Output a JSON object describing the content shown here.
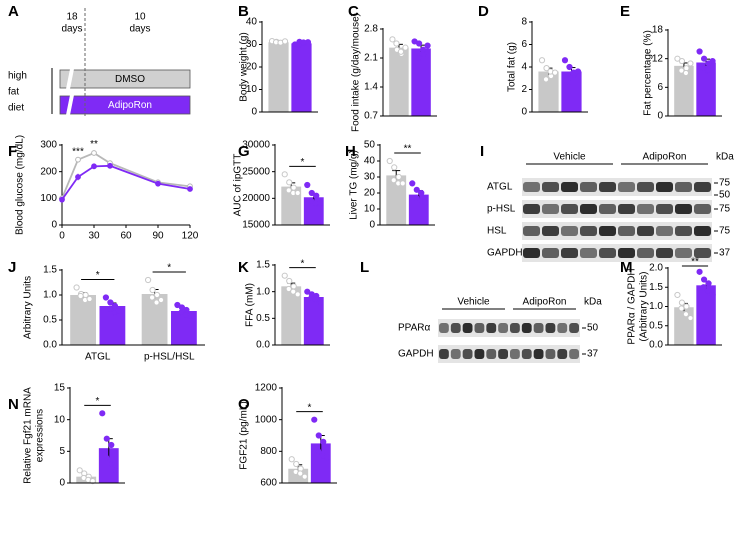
{
  "schematic": {
    "label": "A",
    "periods": [
      [
        "18",
        "days"
      ],
      [
        "10",
        "days"
      ]
    ],
    "diet": [
      "high",
      "fat",
      "diet"
    ],
    "groups": [
      "DMSO",
      "AdipoRon"
    ],
    "colors": [
      "#d0d0d0",
      "#7f2af5"
    ]
  },
  "blots": [
    {
      "label": "I",
      "groups": [
        "Vehicle",
        "AdipoRon"
      ],
      "unit": "kDa",
      "rows": [
        "ATGL",
        "p-HSL",
        "HSL",
        "GAPDH"
      ],
      "markers": [
        75,
        50,
        75,
        75,
        37
      ]
    },
    {
      "label": "L",
      "groups": [
        "Vehicle",
        "AdipoRon"
      ],
      "unit": "kDa",
      "rows": [
        "PPARα",
        "GAPDH"
      ],
      "markers": [
        50,
        37
      ]
    }
  ],
  "chart_data": [
    {
      "type": "bar",
      "label": "B",
      "ylabel": [
        "Body weight (g)"
      ],
      "categories": [
        null
      ],
      "ylim": [
        0,
        40
      ],
      "yticks": [
        0,
        10,
        20,
        30,
        40
      ],
      "series": [
        {
          "color": "#c8c8c8",
          "marker_fill": "#ffffff",
          "values": [
            31
          ],
          "errors": [
            0.3
          ],
          "points": [
            [
              31.5,
              31.2,
              30.6,
              31.0,
              30.8,
              31.4
            ]
          ]
        },
        {
          "color": "#7f2af5",
          "marker_fill": "#7f2af5",
          "values": [
            30.5
          ],
          "errors": [
            0.4
          ],
          "points": [
            [
              30.0,
              31.2,
              30.6,
              29.8,
              30.9,
              31.0
            ]
          ]
        }
      ]
    },
    {
      "type": "bar",
      "label": "C",
      "ylabel": [
        "Food intake (g/day/mouse)"
      ],
      "categories": [
        null
      ],
      "ylim": [
        0.7,
        2.8
      ],
      "yticks": [
        0.7,
        1.4,
        2.1,
        2.8
      ],
      "series": [
        {
          "color": "#c8c8c8",
          "marker_fill": "#ffffff",
          "values": [
            2.35
          ],
          "errors": [
            0.08
          ],
          "points": [
            [
              2.55,
              2.3,
              2.2,
              2.45,
              2.25,
              2.35
            ]
          ]
        },
        {
          "color": "#7f2af5",
          "marker_fill": "#7f2af5",
          "values": [
            2.33
          ],
          "errors": [
            0.08
          ],
          "points": [
            [
              2.5,
              2.45,
              2.2,
              2.1,
              2.3,
              2.4
            ]
          ]
        }
      ]
    },
    {
      "type": "bar",
      "label": "D",
      "ylabel": [
        "Total fat (g)"
      ],
      "categories": [
        null
      ],
      "ylim": [
        0,
        8
      ],
      "yticks": [
        0,
        2,
        4,
        6,
        8
      ],
      "series": [
        {
          "color": "#c8c8c8",
          "marker_fill": "#ffffff",
          "values": [
            3.6
          ],
          "errors": [
            0.3
          ],
          "points": [
            [
              4.6,
              3.9,
              3.2,
              2.9,
              3.6,
              3.5
            ]
          ]
        },
        {
          "color": "#7f2af5",
          "marker_fill": "#7f2af5",
          "values": [
            3.6
          ],
          "errors": [
            0.35
          ],
          "points": [
            [
              4.6,
              4.0,
              3.3,
              2.7,
              3.5,
              3.6
            ]
          ]
        }
      ]
    },
    {
      "type": "bar",
      "label": "E",
      "ylabel": [
        "Fat percentage (%)"
      ],
      "categories": [
        null
      ],
      "ylim": [
        0,
        18
      ],
      "yticks": [
        0,
        6,
        12,
        18
      ],
      "series": [
        {
          "color": "#c8c8c8",
          "marker_fill": "#ffffff",
          "values": [
            10.5
          ],
          "errors": [
            0.6
          ],
          "points": [
            [
              12,
              11.5,
              10,
              9.5,
              9,
              11
            ]
          ]
        },
        {
          "color": "#7f2af5",
          "marker_fill": "#7f2af5",
          "values": [
            11.2
          ],
          "errors": [
            0.7
          ],
          "points": [
            [
              13.5,
              12,
              11,
              10,
              9.5,
              11.5
            ]
          ]
        }
      ]
    },
    {
      "type": "line",
      "label": "F",
      "ylabel": [
        "Blood glucose (mg/dL)"
      ],
      "x": [
        0,
        15,
        30,
        45,
        90,
        120
      ],
      "xlim": [
        0,
        120
      ],
      "xticks": [
        0,
        30,
        60,
        90,
        120
      ],
      "ylim": [
        0,
        300
      ],
      "yticks": [
        0,
        100,
        200,
        300
      ],
      "series": [
        {
          "color": "#b8b8b8",
          "marker_fill": "#ffffff",
          "values": [
            100,
            245,
            270,
            232,
            160,
            145
          ],
          "errors": [
            5,
            6,
            10,
            10,
            6,
            8
          ]
        },
        {
          "color": "#7f2af5",
          "marker_fill": "#7f2af5",
          "values": [
            95,
            180,
            220,
            222,
            155,
            135
          ],
          "errors": [
            5,
            12,
            8,
            10,
            6,
            8
          ]
        }
      ],
      "annotations": [
        {
          "x": 15,
          "text": "***"
        },
        {
          "x": 30,
          "text": "**"
        }
      ]
    },
    {
      "type": "bar",
      "label": "G",
      "ylabel": [
        "AUC of ipGTT"
      ],
      "categories": [
        null
      ],
      "ylim": [
        15000,
        30000
      ],
      "yticks": [
        15000,
        20000,
        25000,
        30000
      ],
      "significance": [
        "*"
      ],
      "series": [
        {
          "color": "#c8c8c8",
          "marker_fill": "#ffffff",
          "values": [
            22200
          ],
          "errors": [
            700
          ],
          "points": [
            [
              24500,
              23000,
              22000,
              21500,
              21000,
              21000
            ]
          ]
        },
        {
          "color": "#7f2af5",
          "marker_fill": "#7f2af5",
          "values": [
            20200
          ],
          "errors": [
            600
          ],
          "points": [
            [
              22500,
              21000,
              20500,
              19500,
              19000,
              19000
            ]
          ]
        }
      ]
    },
    {
      "type": "bar",
      "label": "H",
      "ylabel": [
        "Liver TG (mg/g)"
      ],
      "categories": [
        null
      ],
      "ylim": [
        0,
        50
      ],
      "yticks": [
        0,
        10,
        20,
        30,
        40,
        50
      ],
      "significance": [
        "**"
      ],
      "series": [
        {
          "color": "#c8c8c8",
          "marker_fill": "#ffffff",
          "values": [
            31
          ],
          "errors": [
            3
          ],
          "points": [
            [
              40,
              36,
              30,
              28,
              26,
              26
            ]
          ]
        },
        {
          "color": "#7f2af5",
          "marker_fill": "#7f2af5",
          "values": [
            19
          ],
          "errors": [
            2.5
          ],
          "points": [
            [
              26,
              22,
              20,
              17,
              15,
              14
            ]
          ]
        }
      ]
    },
    {
      "type": "bar",
      "label": "J",
      "ylabel": [
        "Arbitrary Units"
      ],
      "categories": [
        "ATGL",
        "p-HSL/HSL"
      ],
      "ylim": [
        0,
        1.5
      ],
      "yticks": [
        {
          "value": 0,
          "label": "0.0"
        },
        0.5,
        {
          "value": 1,
          "label": "1.0"
        },
        1.5
      ],
      "significance": [
        "*",
        "*"
      ],
      "series": [
        {
          "color": "#c8c8c8",
          "marker_fill": "#ffffff",
          "values": [
            1.0,
            1.02
          ],
          "errors": [
            0.05,
            0.09
          ],
          "points": [
            [
              1.15,
              1.02,
              1.0,
              0.98,
              0.9,
              0.92
            ],
            [
              1.3,
              1.1,
              1.0,
              0.95,
              0.85,
              0.9
            ]
          ]
        },
        {
          "color": "#7f2af5",
          "marker_fill": "#7f2af5",
          "values": [
            0.78,
            0.68
          ],
          "errors": [
            0.06,
            0.05
          ],
          "points": [
            [
              0.95,
              0.85,
              0.78,
              0.72,
              0.65,
              0.68
            ],
            [
              0.8,
              0.75,
              0.7,
              0.65,
              0.6,
              0.58
            ]
          ]
        }
      ]
    },
    {
      "type": "bar",
      "label": "K",
      "ylabel": [
        "FFA (mM)"
      ],
      "categories": [
        null
      ],
      "ylim": [
        0,
        1.5
      ],
      "yticks": [
        {
          "value": 0,
          "label": "0.0"
        },
        0.5,
        {
          "value": 1,
          "label": "1.0"
        },
        1.5
      ],
      "significance": [
        "*"
      ],
      "series": [
        {
          "color": "#c8c8c8",
          "marker_fill": "#ffffff",
          "values": [
            1.1
          ],
          "errors": [
            0.06
          ],
          "points": [
            [
              1.3,
              1.2,
              1.1,
              1.05,
              1.0,
              0.95
            ]
          ]
        },
        {
          "color": "#7f2af5",
          "marker_fill": "#7f2af5",
          "values": [
            0.9
          ],
          "errors": [
            0.05
          ],
          "points": [
            [
              1.0,
              0.95,
              0.92,
              0.88,
              0.85,
              0.8
            ]
          ]
        }
      ]
    },
    {
      "type": "bar",
      "label": "M",
      "ylabel": [
        "PPARα / GAPDH",
        "(Arbitrary Units)"
      ],
      "categories": [
        null
      ],
      "ylim": [
        0,
        2
      ],
      "yticks": [
        {
          "value": 0,
          "label": "0.0"
        },
        0.5,
        {
          "value": 1,
          "label": "1.0"
        },
        1.5,
        {
          "value": 2,
          "label": "2.0"
        }
      ],
      "significance": [
        "**"
      ],
      "series": [
        {
          "color": "#c8c8c8",
          "marker_fill": "#ffffff",
          "values": [
            0.98
          ],
          "errors": [
            0.1
          ],
          "points": [
            [
              1.3,
              1.1,
              1.0,
              0.95,
              0.8,
              0.7
            ]
          ]
        },
        {
          "color": "#7f2af5",
          "marker_fill": "#7f2af5",
          "values": [
            1.55
          ],
          "errors": [
            0.1
          ],
          "points": [
            [
              1.9,
              1.7,
              1.6,
              1.5,
              1.4,
              1.3
            ]
          ]
        }
      ]
    },
    {
      "type": "bar",
      "label": "N",
      "ylabel": [
        "Relative Fgf21 mRNA",
        "expressions"
      ],
      "categories": [
        null
      ],
      "ylim": [
        0,
        15
      ],
      "yticks": [
        0,
        5,
        10,
        15
      ],
      "significance": [
        "*"
      ],
      "series": [
        {
          "color": "#c8c8c8",
          "marker_fill": "#ffffff",
          "values": [
            1.0
          ],
          "errors": [
            0.3
          ],
          "points": [
            [
              2,
              1.5,
              1,
              0.8,
              0.5,
              0.3
            ]
          ]
        },
        {
          "color": "#7f2af5",
          "marker_fill": "#7f2af5",
          "values": [
            5.5
          ],
          "errors": [
            1.5
          ],
          "points": [
            [
              11,
              7,
              6,
              4,
              3,
              2
            ]
          ]
        }
      ]
    },
    {
      "type": "bar",
      "label": "O",
      "ylabel": [
        "FGF21 (pg/mL)"
      ],
      "categories": [
        null
      ],
      "ylim": [
        600,
        1200
      ],
      "yticks": [
        600,
        800,
        1000,
        1200
      ],
      "significance": [
        "*"
      ],
      "series": [
        {
          "color": "#c8c8c8",
          "marker_fill": "#ffffff",
          "values": [
            690
          ],
          "errors": [
            25
          ],
          "points": [
            [
              750,
              720,
              690,
              670,
              660,
              640
            ]
          ]
        },
        {
          "color": "#7f2af5",
          "marker_fill": "#7f2af5",
          "values": [
            850
          ],
          "errors": [
            50
          ],
          "points": [
            [
              1000,
              900,
              860,
              800,
              770,
              760
            ]
          ]
        }
      ]
    }
  ]
}
